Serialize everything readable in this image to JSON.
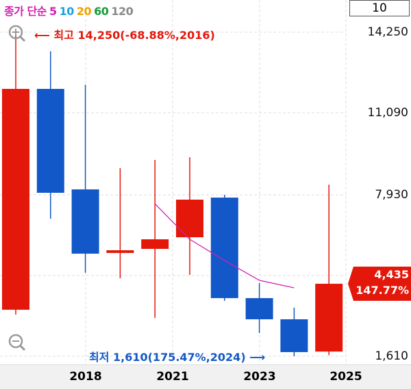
{
  "legend": {
    "label": "종가 단순",
    "periods": [
      {
        "v": "5",
        "color": "#d020b0"
      },
      {
        "v": "10",
        "color": "#1aa0e0"
      },
      {
        "v": "20",
        "color": "#f0a000"
      },
      {
        "v": "60",
        "color": "#1a9a3a"
      },
      {
        "v": "120",
        "color": "#888888"
      }
    ]
  },
  "period_box": "10",
  "colors": {
    "up": "#e3170a",
    "down": "#1358c8",
    "ma5": "#d020b0"
  },
  "annotations": {
    "high": "최고 14,250(-68.88%,2016)",
    "low": "최저 1,610(175.47%,2024)"
  },
  "current": {
    "price": "4,435",
    "change": "147.77%"
  },
  "chart_data": {
    "type": "candlestick",
    "ylim": [
      1610,
      14250
    ],
    "y_ticks": [
      "14,250",
      "11,090",
      "7,930",
      "1,610"
    ],
    "x_ticks": [
      "2018",
      "2021",
      "2023",
      "2025"
    ],
    "grid": true,
    "candles": [
      {
        "year": 2016,
        "open": 3422,
        "high": 14250,
        "low": 3235,
        "close": 12036
      },
      {
        "year": 2017,
        "open": 12036,
        "high": 13503,
        "low": 6969,
        "close": 7983
      },
      {
        "year": 2018,
        "open": 8116,
        "high": 12196,
        "low": 4862,
        "close": 5609
      },
      {
        "year": 2019,
        "open": 5636,
        "high": 8943,
        "low": 4649,
        "close": 5742
      },
      {
        "year": 2020,
        "open": 5796,
        "high": 9263,
        "low": 3102,
        "close": 6169
      },
      {
        "year": 2021,
        "open": 6249,
        "high": 9370,
        "low": 4782,
        "close": 7716
      },
      {
        "year": 2022,
        "open": 7796,
        "high": 7903,
        "low": 3769,
        "close": 3875
      },
      {
        "year": 2023,
        "open": 3875,
        "high": 4462,
        "low": 2515,
        "close": 3049
      },
      {
        "year": 2024,
        "open": 3049,
        "high": 3502,
        "low": 1610,
        "close": 1769
      },
      {
        "year": 2025,
        "open": 1790,
        "high": 8303,
        "low": 1650,
        "close": 4435
      }
    ],
    "ma5": [
      {
        "year": 2020,
        "value": 7556
      },
      {
        "year": 2021,
        "value": 6169
      },
      {
        "year": 2022,
        "value": 5342
      },
      {
        "year": 2023,
        "value": 4569
      },
      {
        "year": 2024,
        "value": 4276
      }
    ]
  }
}
